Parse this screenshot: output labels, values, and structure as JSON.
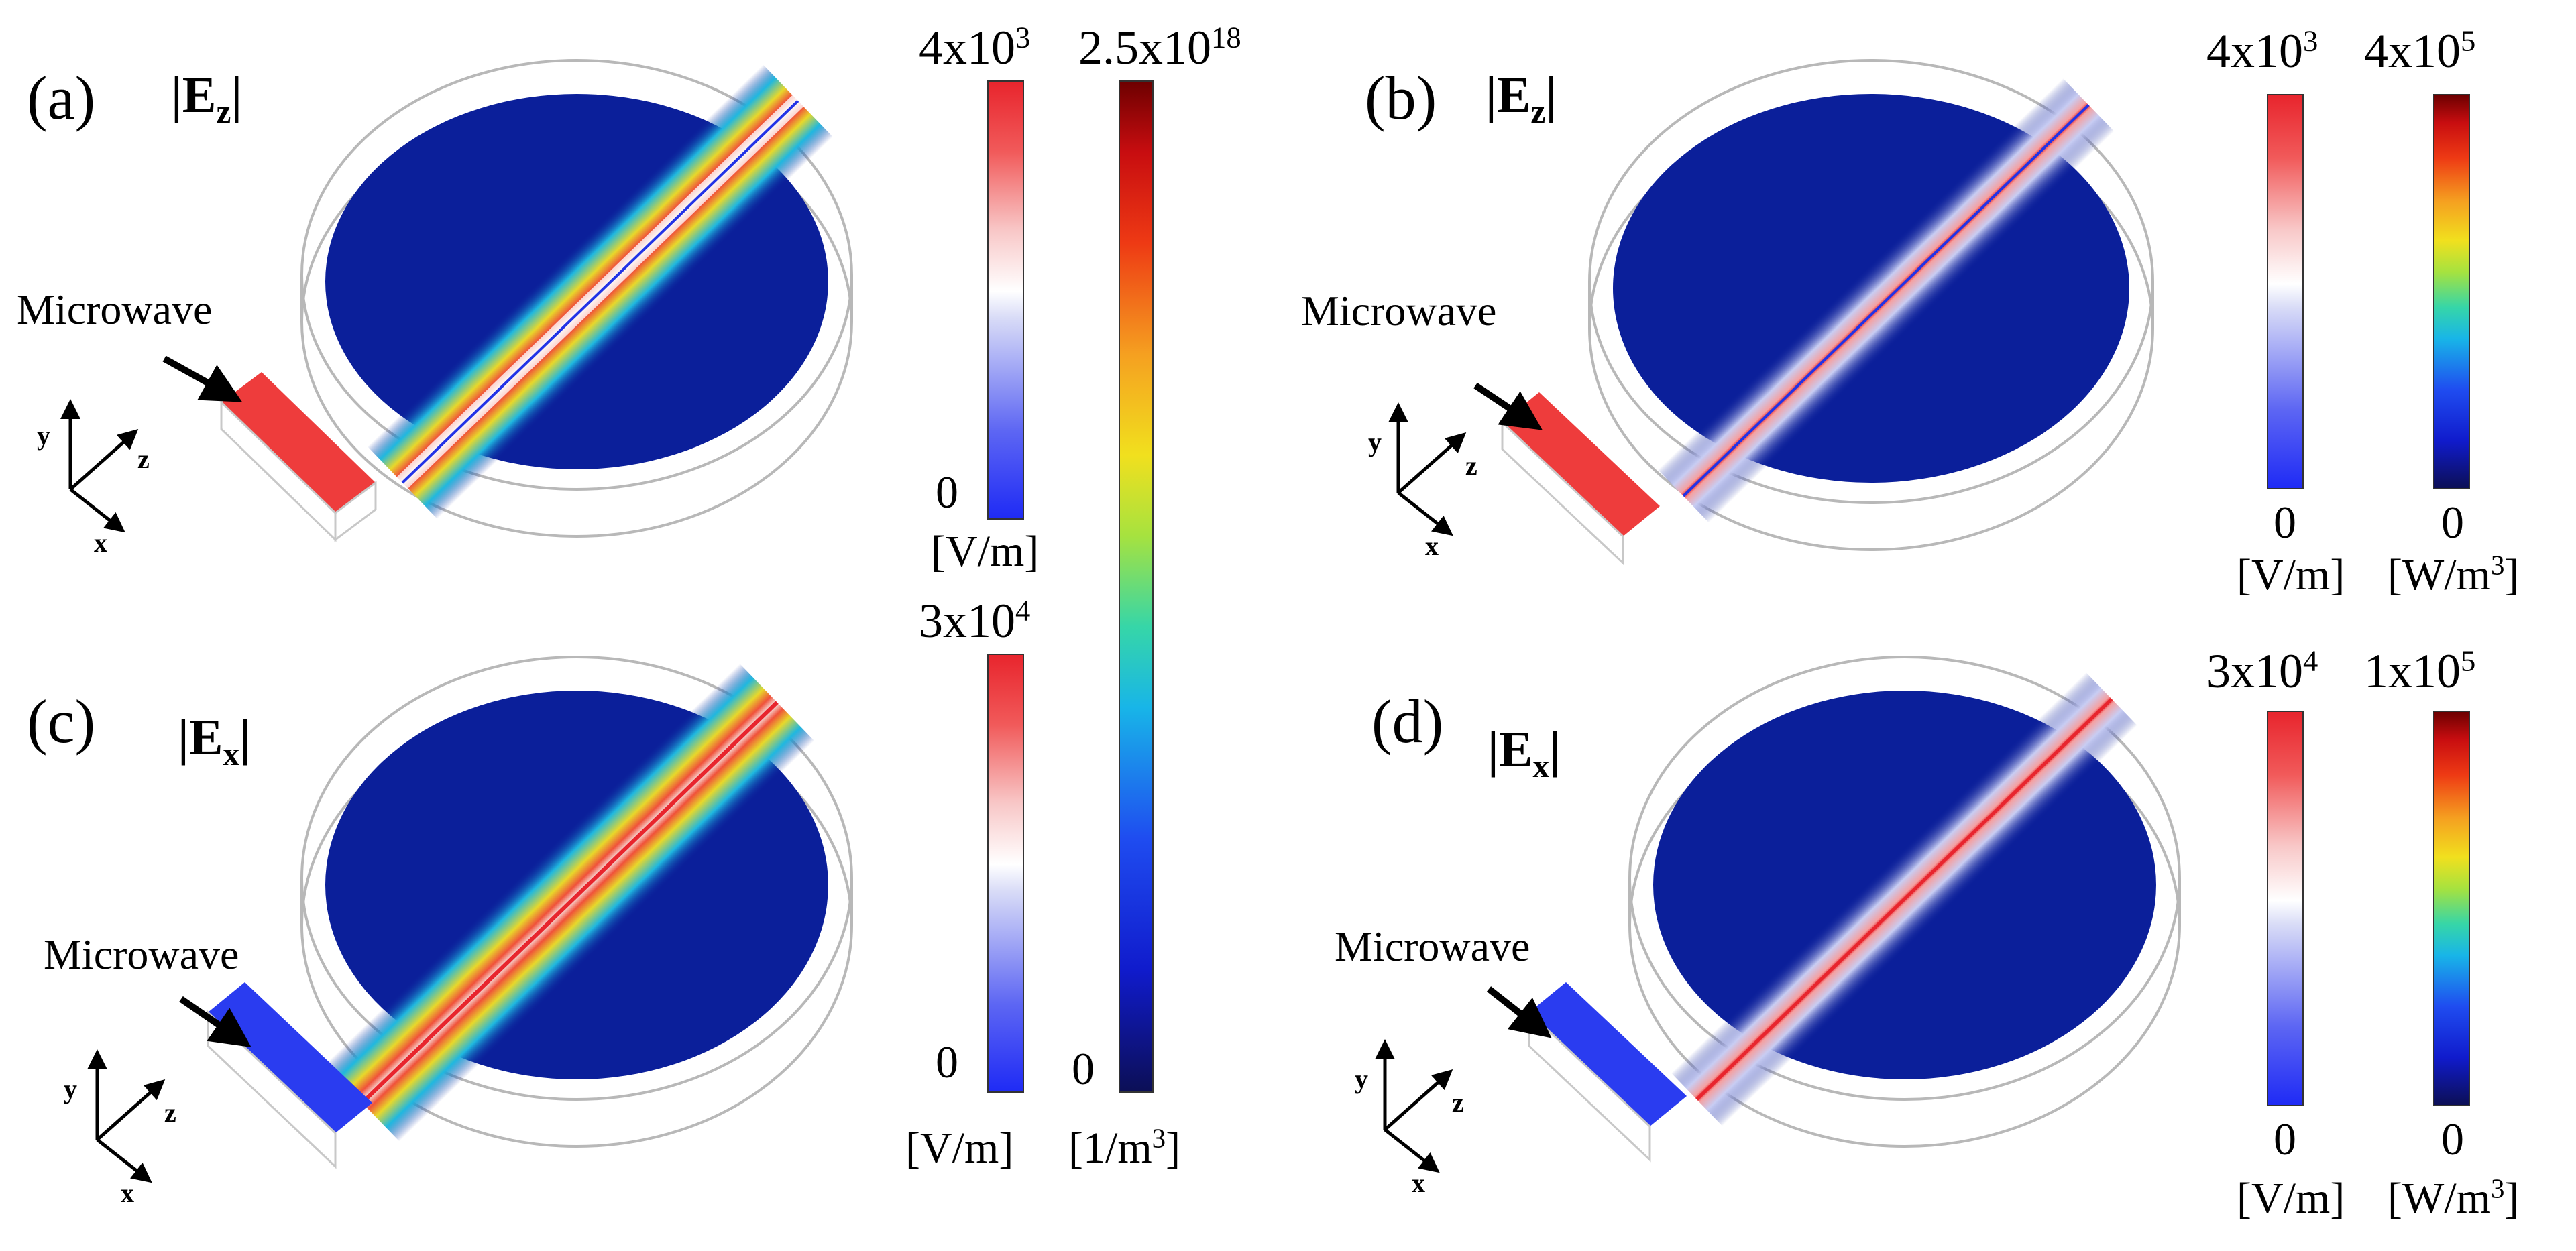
{
  "panels": {
    "a": {
      "label": "(a)",
      "field": "|E",
      "sub": "z",
      "bar": "|"
    },
    "b": {
      "label": "(b)",
      "field": "|E",
      "sub": "z",
      "bar": "|"
    },
    "c": {
      "label": "(c)",
      "field": "|E",
      "sub": "x",
      "bar": "|"
    },
    "d": {
      "label": "(d)",
      "field": "|E",
      "sub": "x",
      "bar": "|"
    }
  },
  "microwave_label": "Microwave",
  "axes": {
    "x": "x",
    "y": "y",
    "z": "z"
  },
  "colorbars": {
    "a_field": {
      "max_base": "4x10",
      "max_exp": "3",
      "min": "0",
      "unit": "[V/m]",
      "colormap": "blue-white-red"
    },
    "c_field": {
      "max_base": "3x10",
      "max_exp": "4",
      "min": "0",
      "unit": "[V/m]",
      "colormap": "blue-white-red"
    },
    "density": {
      "max_base": "2.5x10",
      "max_exp": "18",
      "min": "0",
      "unit_base": "[1/m",
      "unit_exp": "3",
      "unit_end": "]",
      "colormap": "jet"
    },
    "b_field": {
      "max_base": "4x10",
      "max_exp": "3",
      "min": "0",
      "unit": "[V/m]",
      "colormap": "blue-white-red"
    },
    "b_power": {
      "max_base": "4x10",
      "max_exp": "5",
      "min": "0",
      "unit_base": "[W/m",
      "unit_exp": "3",
      "unit_end": "]",
      "colormap": "jet"
    },
    "d_field": {
      "max_base": "3x10",
      "max_exp": "4",
      "min": "0",
      "unit": "[V/m]",
      "colormap": "blue-white-red"
    },
    "d_power": {
      "max_base": "1x10",
      "max_exp": "5",
      "min": "0",
      "unit_base": "[W/m",
      "unit_exp": "3",
      "unit_end": "]",
      "colormap": "jet"
    }
  },
  "colors": {
    "disk": "#0b1f9a",
    "hot": "#e8252d",
    "glow": "#f3c21a",
    "port_red": "#ee3c3c",
    "port_blue": "#2a3cf0"
  }
}
